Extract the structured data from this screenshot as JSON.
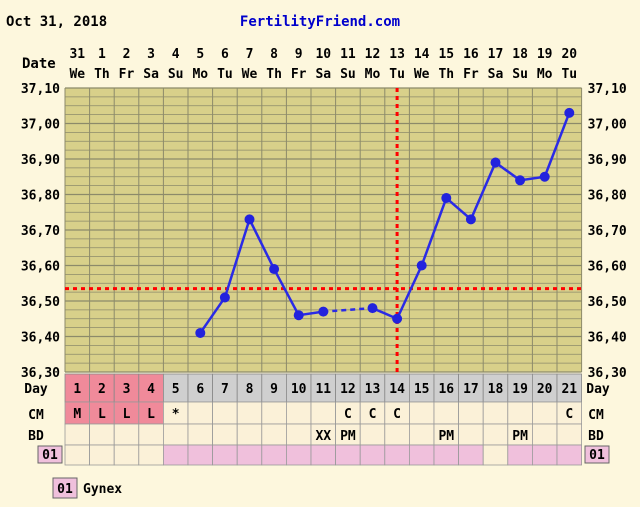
{
  "header": {
    "date": "Oct 31, 2018",
    "site": "FertilityFriend.com"
  },
  "row_labels": {
    "date": "Date",
    "day": "Day",
    "cm": "CM",
    "bd": "BD",
    "code": "01"
  },
  "legend": {
    "code": "01",
    "label": "Gynex"
  },
  "colors": {
    "page_bg": "#fdf7dd",
    "plot_bg": "#d8d08a",
    "grid": "#8c8a6a",
    "line": "#2a2ae6",
    "marker": "#2222dd",
    "coverline": "#ff0000",
    "menses_cell": "#f08a9a",
    "code_cell": "#f0c0dc",
    "day_row": "#cfcfcf",
    "cell_light": "#fbf1d8",
    "site_text": "#0000cc"
  },
  "chart_data": {
    "type": "line",
    "title": "",
    "cycle_days": [
      1,
      2,
      3,
      4,
      5,
      6,
      7,
      8,
      9,
      10,
      11,
      12,
      13,
      14,
      15,
      16,
      17,
      18,
      19,
      20,
      21
    ],
    "dates": [
      "31",
      "1",
      "2",
      "3",
      "4",
      "5",
      "6",
      "7",
      "8",
      "9",
      "10",
      "11",
      "12",
      "13",
      "14",
      "15",
      "16",
      "17",
      "18",
      "19",
      "20"
    ],
    "weekdays": [
      "We",
      "Th",
      "Fr",
      "Sa",
      "Su",
      "Mo",
      "Tu",
      "We",
      "Th",
      "Fr",
      "Sa",
      "Su",
      "Mo",
      "Tu",
      "We",
      "Th",
      "Fr",
      "Sa",
      "Su",
      "Mo",
      "Tu"
    ],
    "temps": [
      null,
      null,
      null,
      null,
      null,
      36.41,
      36.51,
      36.73,
      36.59,
      36.46,
      36.47,
      null,
      36.48,
      36.45,
      36.6,
      36.79,
      36.73,
      36.89,
      36.84,
      36.85,
      37.03
    ],
    "y_ticks": [
      "37,10",
      "37,00",
      "36,90",
      "36,80",
      "36,70",
      "36,60",
      "36,50",
      "36,40",
      "36,30"
    ],
    "ylim": [
      36.3,
      37.1
    ],
    "coverline": 36.535,
    "ovulation_day": 14,
    "cm": [
      "M",
      "L",
      "L",
      "L",
      "*",
      "",
      "",
      "",
      "",
      "",
      "",
      "C",
      "C",
      "C",
      "",
      "",
      "",
      "",
      "",
      "",
      "C"
    ],
    "bd": [
      "",
      "",
      "",
      "",
      "",
      "",
      "",
      "",
      "",
      "",
      "XX",
      "PM",
      "",
      "",
      "",
      "PM",
      "",
      "",
      "PM",
      "",
      ""
    ],
    "menses_days": [
      1,
      2,
      3,
      4
    ],
    "code_days": [
      5,
      6,
      7,
      8,
      9,
      10,
      11,
      12,
      13,
      14,
      15,
      16,
      17,
      19,
      20,
      21
    ]
  }
}
